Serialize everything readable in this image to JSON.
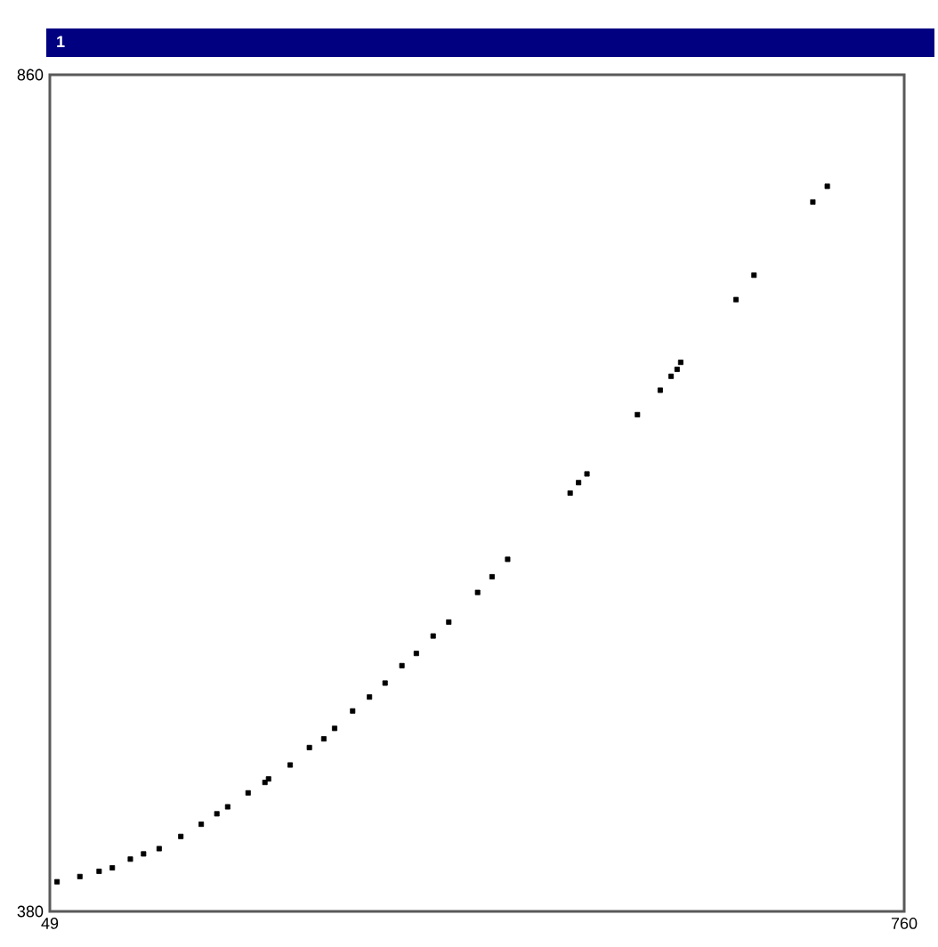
{
  "chart_data": {
    "type": "scatter",
    "title": "1",
    "x": [
      55,
      74,
      90,
      101,
      116,
      127,
      140,
      158,
      175,
      188,
      197,
      214,
      228,
      231,
      249,
      265,
      277,
      286,
      301,
      315,
      328,
      342,
      354,
      368,
      381,
      405,
      417,
      430,
      482,
      489,
      496,
      538,
      557,
      566,
      571,
      574,
      620,
      635,
      684,
      696
    ],
    "values": [
      397,
      400,
      403,
      405,
      410,
      413,
      416,
      423,
      430,
      436,
      440,
      448,
      454,
      456,
      464,
      474,
      479,
      485,
      495,
      503,
      511,
      521,
      528,
      538,
      546,
      563,
      572,
      582,
      620,
      626,
      631,
      665,
      679,
      687,
      691,
      695,
      731,
      745,
      787,
      796
    ],
    "color": "#000000",
    "marker": "square",
    "xlim": [
      49,
      760
    ],
    "ylim": [
      380,
      860
    ],
    "xticks": [
      49,
      760
    ],
    "yticks": [
      380,
      860
    ]
  }
}
